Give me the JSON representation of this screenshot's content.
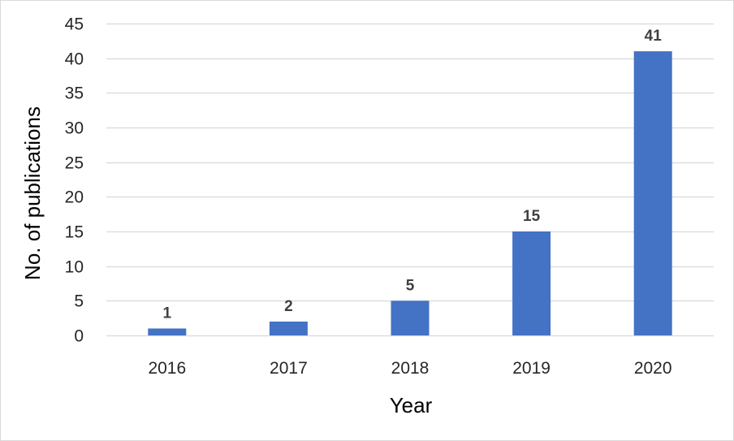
{
  "chart_data": {
    "type": "bar",
    "categories": [
      "2016",
      "2017",
      "2018",
      "2019",
      "2020"
    ],
    "values": [
      1,
      2,
      5,
      15,
      41
    ],
    "data_labels": [
      "1",
      "2",
      "5",
      "15",
      "41"
    ],
    "title": "",
    "xlabel": "Year",
    "ylabel": "No. of publications",
    "ylim": [
      0,
      45
    ],
    "yticks": [
      "0",
      "5",
      "10",
      "15",
      "20",
      "25",
      "30",
      "35",
      "40",
      "45"
    ],
    "grid": true,
    "legend": "none",
    "bar_color": "#4472c4",
    "grid_color": "#d9d9d9"
  }
}
